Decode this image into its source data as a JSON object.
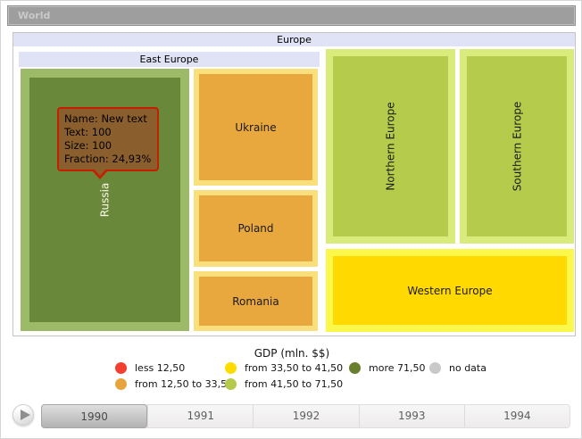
{
  "world_bar": {
    "label": "World"
  },
  "treemap": {
    "europe_label": "Europe",
    "east_europe_label": "East Europe",
    "cells": {
      "russia": {
        "label": "Russia",
        "fill": "#6a8839",
        "frame": "#9dba68"
      },
      "ukraine": {
        "label": "Ukraine",
        "fill": "#e9a83e",
        "frame": "#f9e07c"
      },
      "poland": {
        "label": "Poland",
        "fill": "#e9a83e",
        "frame": "#f9e07c"
      },
      "romania": {
        "label": "Romania",
        "fill": "#e9a83e",
        "frame": "#f9e07c"
      },
      "northern_europe": {
        "label": "Northern Europe",
        "fill": "#b5cb4b",
        "frame": "#d9eb7b"
      },
      "southern_europe": {
        "label": "Southern Europe",
        "fill": "#b5cb4b",
        "frame": "#d9eb7b"
      },
      "western_europe": {
        "label": "Western Europe",
        "fill": "#ffd900",
        "frame": "#fcf84b"
      }
    }
  },
  "tooltip": {
    "name_line": "Name: New text",
    "text_line": "Text: 100",
    "size_line": "Size: 100",
    "fraction_line": "Fraction: 24,93%",
    "background": "#8b5f2d",
    "border_color": "#c42000"
  },
  "legend": {
    "title": "GDP (mln. $$)",
    "items": [
      {
        "label": "less 12,50",
        "color": "#f23f2e"
      },
      {
        "label": "from 12,50 to 33,50",
        "color": "#e7a33c"
      },
      {
        "label": "from 33,50 to 41,50",
        "color": "#ffdc00"
      },
      {
        "label": "from 41,50 to 71,50",
        "color": "#b4ca4b"
      },
      {
        "label": "more 71,50",
        "color": "#697f2e"
      },
      {
        "label": "no data",
        "color": "#c9c9c9"
      }
    ]
  },
  "timeline": {
    "years": [
      "1990",
      "1991",
      "1992",
      "1993",
      "1994"
    ],
    "selected_year": "1990"
  },
  "chart_data": {
    "type": "treemap",
    "title": "GDP (mln. $$)",
    "breadcrumb": "World",
    "root": "Europe",
    "nodes": [
      {
        "name": "East Europe",
        "parent": "Europe",
        "children": [
          {
            "name": "Russia",
            "area_share_pct_estimate": 31.2,
            "gdp_category": "more 71,50"
          },
          {
            "name": "Ukraine",
            "area_share_pct_estimate": 10.2,
            "gdp_category": "from 12,50 to 33,50"
          },
          {
            "name": "Poland",
            "area_share_pct_estimate": 6.7,
            "gdp_category": "from 12,50 to 33,50"
          },
          {
            "name": "Romania",
            "area_share_pct_estimate": 5.2,
            "gdp_category": "from 12,50 to 33,50"
          }
        ]
      },
      {
        "name": "Northern Europe",
        "parent": "Europe",
        "area_share_pct_estimate": 17.6,
        "gdp_category": "from 41,50 to 71,50"
      },
      {
        "name": "Southern Europe",
        "parent": "Europe",
        "area_share_pct_estimate": 15.0,
        "gdp_category": "from 41,50 to 71,50"
      },
      {
        "name": "Western Europe",
        "parent": "Europe",
        "area_share_pct_estimate": 14.1,
        "gdp_category": "from 33,50 to 41,50"
      }
    ],
    "hover_tooltip": {
      "name": "New text",
      "text": 100,
      "size": 100,
      "fraction_pct": "24,93%"
    },
    "legend_position": "bottom",
    "timeline_years": [
      1990,
      1991,
      1992,
      1993,
      1994
    ],
    "selected_year": 1990
  }
}
